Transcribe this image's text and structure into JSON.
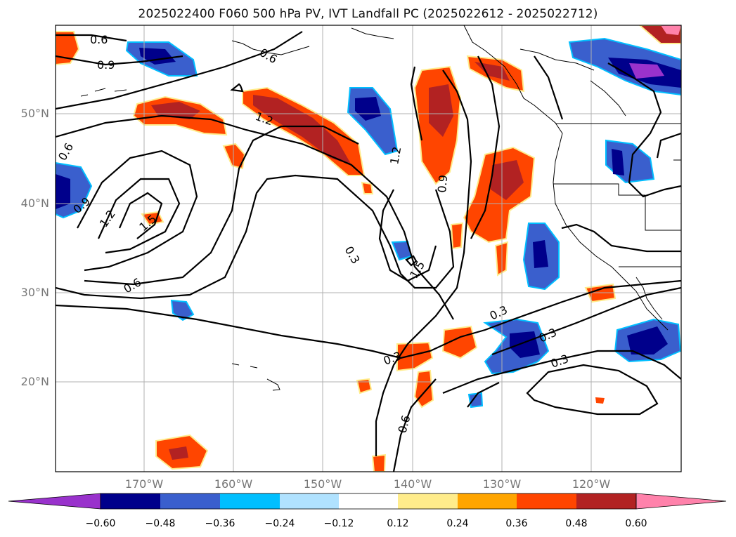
{
  "title": "2025022400 F060 500 hPa PV, IVT Landfall PC (2025022612 - 2025022712)",
  "lat_labels": [
    "50°N",
    "40°N",
    "30°N",
    "20°N"
  ],
  "lon_labels": [
    "170°W",
    "160°W",
    "150°W",
    "140°W",
    "130°W",
    "120°W"
  ],
  "contour_labels": [
    "0.6",
    "0.9",
    "1.2",
    "0.6",
    "0.9",
    "1.2",
    "1.5",
    "0.6",
    "1.2",
    "0.9",
    "0.3",
    "1.5",
    "0.3",
    "0.3",
    "0.6",
    "0.3",
    "0.3",
    "0.6"
  ],
  "colorbar": {
    "ticks": [
      "−0.60",
      "−0.48",
      "−0.36",
      "−0.24",
      "−0.12",
      "0.12",
      "0.24",
      "0.36",
      "0.48",
      "0.60"
    ],
    "colors": [
      "#9932cc",
      "#00008b",
      "#3a5fcd",
      "#00bfff",
      "#b0e2ff",
      "#ffffff",
      "#ffec8b",
      "#ffa500",
      "#ff4500",
      "#b22222",
      "#ff82ab"
    ]
  },
  "colors": {
    "gridline": "#b0b0b0",
    "frame": "#000000",
    "axis_label": "#777777"
  }
}
